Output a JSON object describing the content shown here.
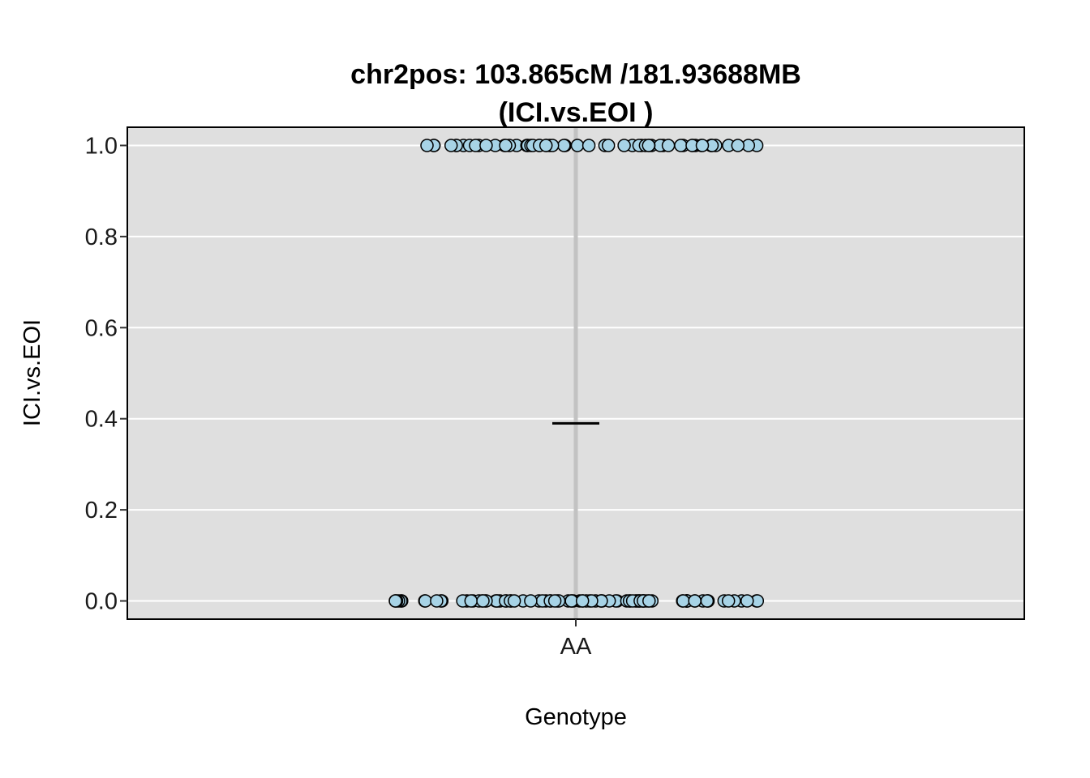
{
  "chart_data": {
    "type": "scatter",
    "title": "chr2pos: 103.865cM /181.93688MB",
    "subtitle": "(ICI.vs.EOI )",
    "xlabel": "Genotype",
    "ylabel": "ICI.vs.EOI",
    "categories": [
      "AA"
    ],
    "ylim": [
      -0.04,
      1.04
    ],
    "yticks": [
      {
        "value": 0.0,
        "label": "0.0"
      },
      {
        "value": 0.2,
        "label": "0.2"
      },
      {
        "value": 0.4,
        "label": "0.4"
      },
      {
        "value": 0.6,
        "label": "0.6"
      },
      {
        "value": 0.8,
        "label": "0.8"
      },
      {
        "value": 1.0,
        "label": "1.0"
      }
    ],
    "grid": true,
    "mean_marker": {
      "category": "AA",
      "value": 0.39
    },
    "series": [
      {
        "category": "AA",
        "values_at_1": 58,
        "values_at_0": 92
      }
    ],
    "colors": {
      "panel_background": "#dfdfdf",
      "grid": "#ffffff",
      "points_fill": "#a7d3e6",
      "points_stroke": "#000000",
      "category_line": "#c2c2c2",
      "mean_marker": "#000000"
    }
  }
}
